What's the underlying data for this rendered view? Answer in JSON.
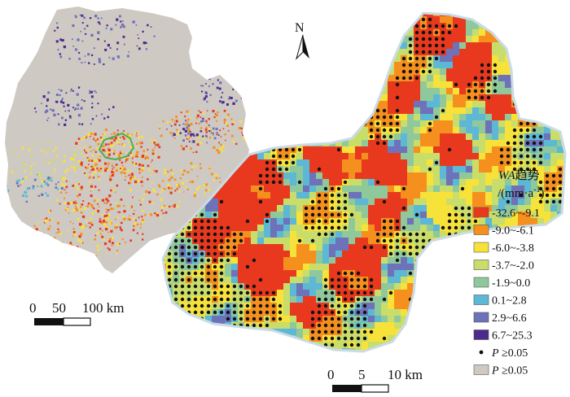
{
  "figure": {
    "north_label": "N",
    "legend": {
      "title_line1_italic": "WA",
      "title_line1_rest": "趋势",
      "title_line2": "/(mm·a",
      "title_line2_sup": "-1",
      "title_line2_end": ")",
      "items": [
        {
          "label": "-32.6~-9.1",
          "color": "#e8391f",
          "kind": "box"
        },
        {
          "label": "-9.0~-6.1",
          "color": "#f5901e",
          "kind": "box"
        },
        {
          "label": "-6.0~-3.8",
          "color": "#f7e23a",
          "kind": "box"
        },
        {
          "label": "-3.7~-2.0",
          "color": "#c9dd6a",
          "kind": "box"
        },
        {
          "label": "-1.9~0.0",
          "color": "#8fc99b",
          "kind": "box"
        },
        {
          "label": "0.1~2.8",
          "color": "#5cb8d4",
          "kind": "box"
        },
        {
          "label": "2.9~6.6",
          "color": "#6e72b8",
          "kind": "box"
        },
        {
          "label": "6.7~25.3",
          "color": "#4a2c8c",
          "kind": "box"
        },
        {
          "label_italic": "P",
          "label_rest": "≥0.05",
          "color": "#111111",
          "kind": "dot"
        },
        {
          "label_italic": "P",
          "label_rest": "≥0.05",
          "color": "#cfc9c4",
          "kind": "box"
        }
      ]
    },
    "scalebar_left": {
      "labels": [
        "0",
        "50",
        "100 km"
      ]
    },
    "scalebar_right": {
      "labels": [
        "0",
        "5",
        "10 km"
      ]
    },
    "colors": {
      "background_region": "#cfc9c4",
      "detail_outline": "#c9dbe6",
      "overview_outline": "#4caf50"
    }
  }
}
